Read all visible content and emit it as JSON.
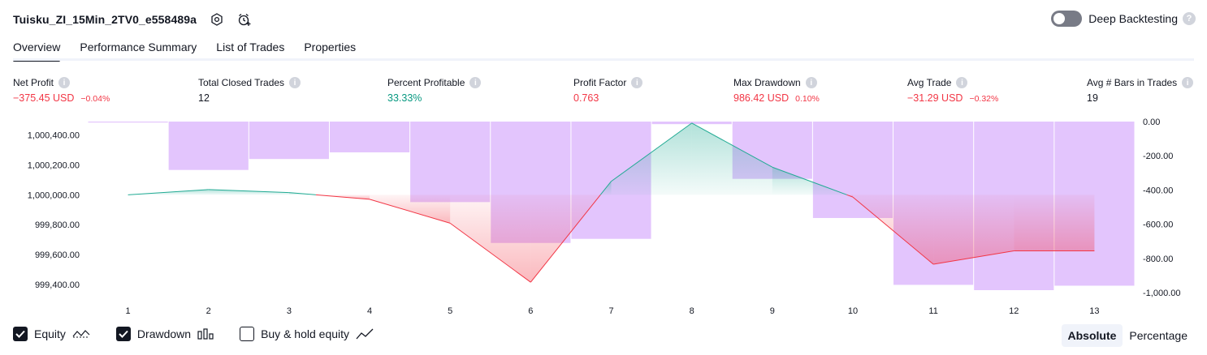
{
  "strategy": {
    "title": "Tuisku_ZI_15Min_2TV0_e558489a"
  },
  "deep_backtesting": {
    "label": "Deep Backtesting",
    "enabled": false
  },
  "tabs": [
    {
      "label": "Overview",
      "active": true
    },
    {
      "label": "Performance Summary",
      "active": false
    },
    {
      "label": "List of Trades",
      "active": false
    },
    {
      "label": "Properties",
      "active": false
    }
  ],
  "stats": {
    "net_profit": {
      "label": "Net Profit",
      "value": "−375.45 USD",
      "pct": "−0.04%",
      "color": "#f23645"
    },
    "total_closed_trades": {
      "label": "Total Closed Trades",
      "value": "12"
    },
    "percent_profitable": {
      "label": "Percent Profitable",
      "value": "33.33%",
      "color": "#089981"
    },
    "profit_factor": {
      "label": "Profit Factor",
      "value": "0.763",
      "color": "#f23645"
    },
    "max_drawdown": {
      "label": "Max Drawdown",
      "value": "986.42 USD",
      "pct": "0.10%",
      "color": "#f23645"
    },
    "avg_trade": {
      "label": "Avg Trade",
      "value": "−31.29 USD",
      "pct": "−0.32%",
      "color": "#f23645"
    },
    "avg_bars": {
      "label": "Avg # Bars in Trades",
      "value": "19"
    }
  },
  "chart_data": {
    "type": "line",
    "x": [
      1,
      2,
      3,
      4,
      5,
      6,
      7,
      8,
      9,
      10,
      11,
      12,
      13
    ],
    "x_tick_labels": [
      "1",
      "2",
      "3",
      "4",
      "5",
      "6",
      "7",
      "8",
      "9",
      "10",
      "11",
      "12",
      "13"
    ],
    "series": [
      {
        "name": "Equity",
        "type": "line",
        "axis": "left",
        "values": [
          1000000,
          1000035,
          1000015,
          999970,
          999810,
          999415,
          1000090,
          1000480,
          1000185,
          999985,
          999535,
          999625,
          999625
        ]
      },
      {
        "name": "Drawdown",
        "type": "bar",
        "axis": "right",
        "values": [
          0,
          -283,
          -219,
          -180,
          -471,
          -710,
          -686,
          -15,
          -335,
          -564,
          -955,
          -986,
          -960
        ]
      }
    ],
    "left_axis": {
      "range": [
        999340,
        1000490
      ],
      "ticks": [
        1000400,
        1000200,
        1000000,
        999800,
        999600,
        999400
      ],
      "tick_labels": [
        "1,000,400.00",
        "1,000,200.00",
        "1,000,000.00",
        "999,800.00",
        "999,600.00",
        "999,400.00"
      ]
    },
    "right_axis": {
      "range": [
        -1005,
        0
      ],
      "ticks": [
        0,
        -200,
        -400,
        -600,
        -800,
        -1000
      ],
      "tick_labels": [
        "0.00",
        "-200.00",
        "-400.00",
        "-600.00",
        "-800.00",
        "-1,000.00"
      ]
    },
    "baseline": 1000000,
    "colors": {
      "drawdown": "#e1c2fd",
      "equity_up": "#22ab94",
      "equity_down": "#f23645"
    },
    "grid": false
  },
  "legend": [
    {
      "label": "Equity",
      "checked": true,
      "icon": "equity-wave-icon"
    },
    {
      "label": "Drawdown",
      "checked": true,
      "icon": "bar-chart-icon"
    },
    {
      "label": "Buy & hold equity",
      "checked": false,
      "icon": "trend-line-icon"
    }
  ],
  "mode": {
    "options": [
      "Absolute",
      "Percentage"
    ],
    "selected": "Absolute"
  }
}
